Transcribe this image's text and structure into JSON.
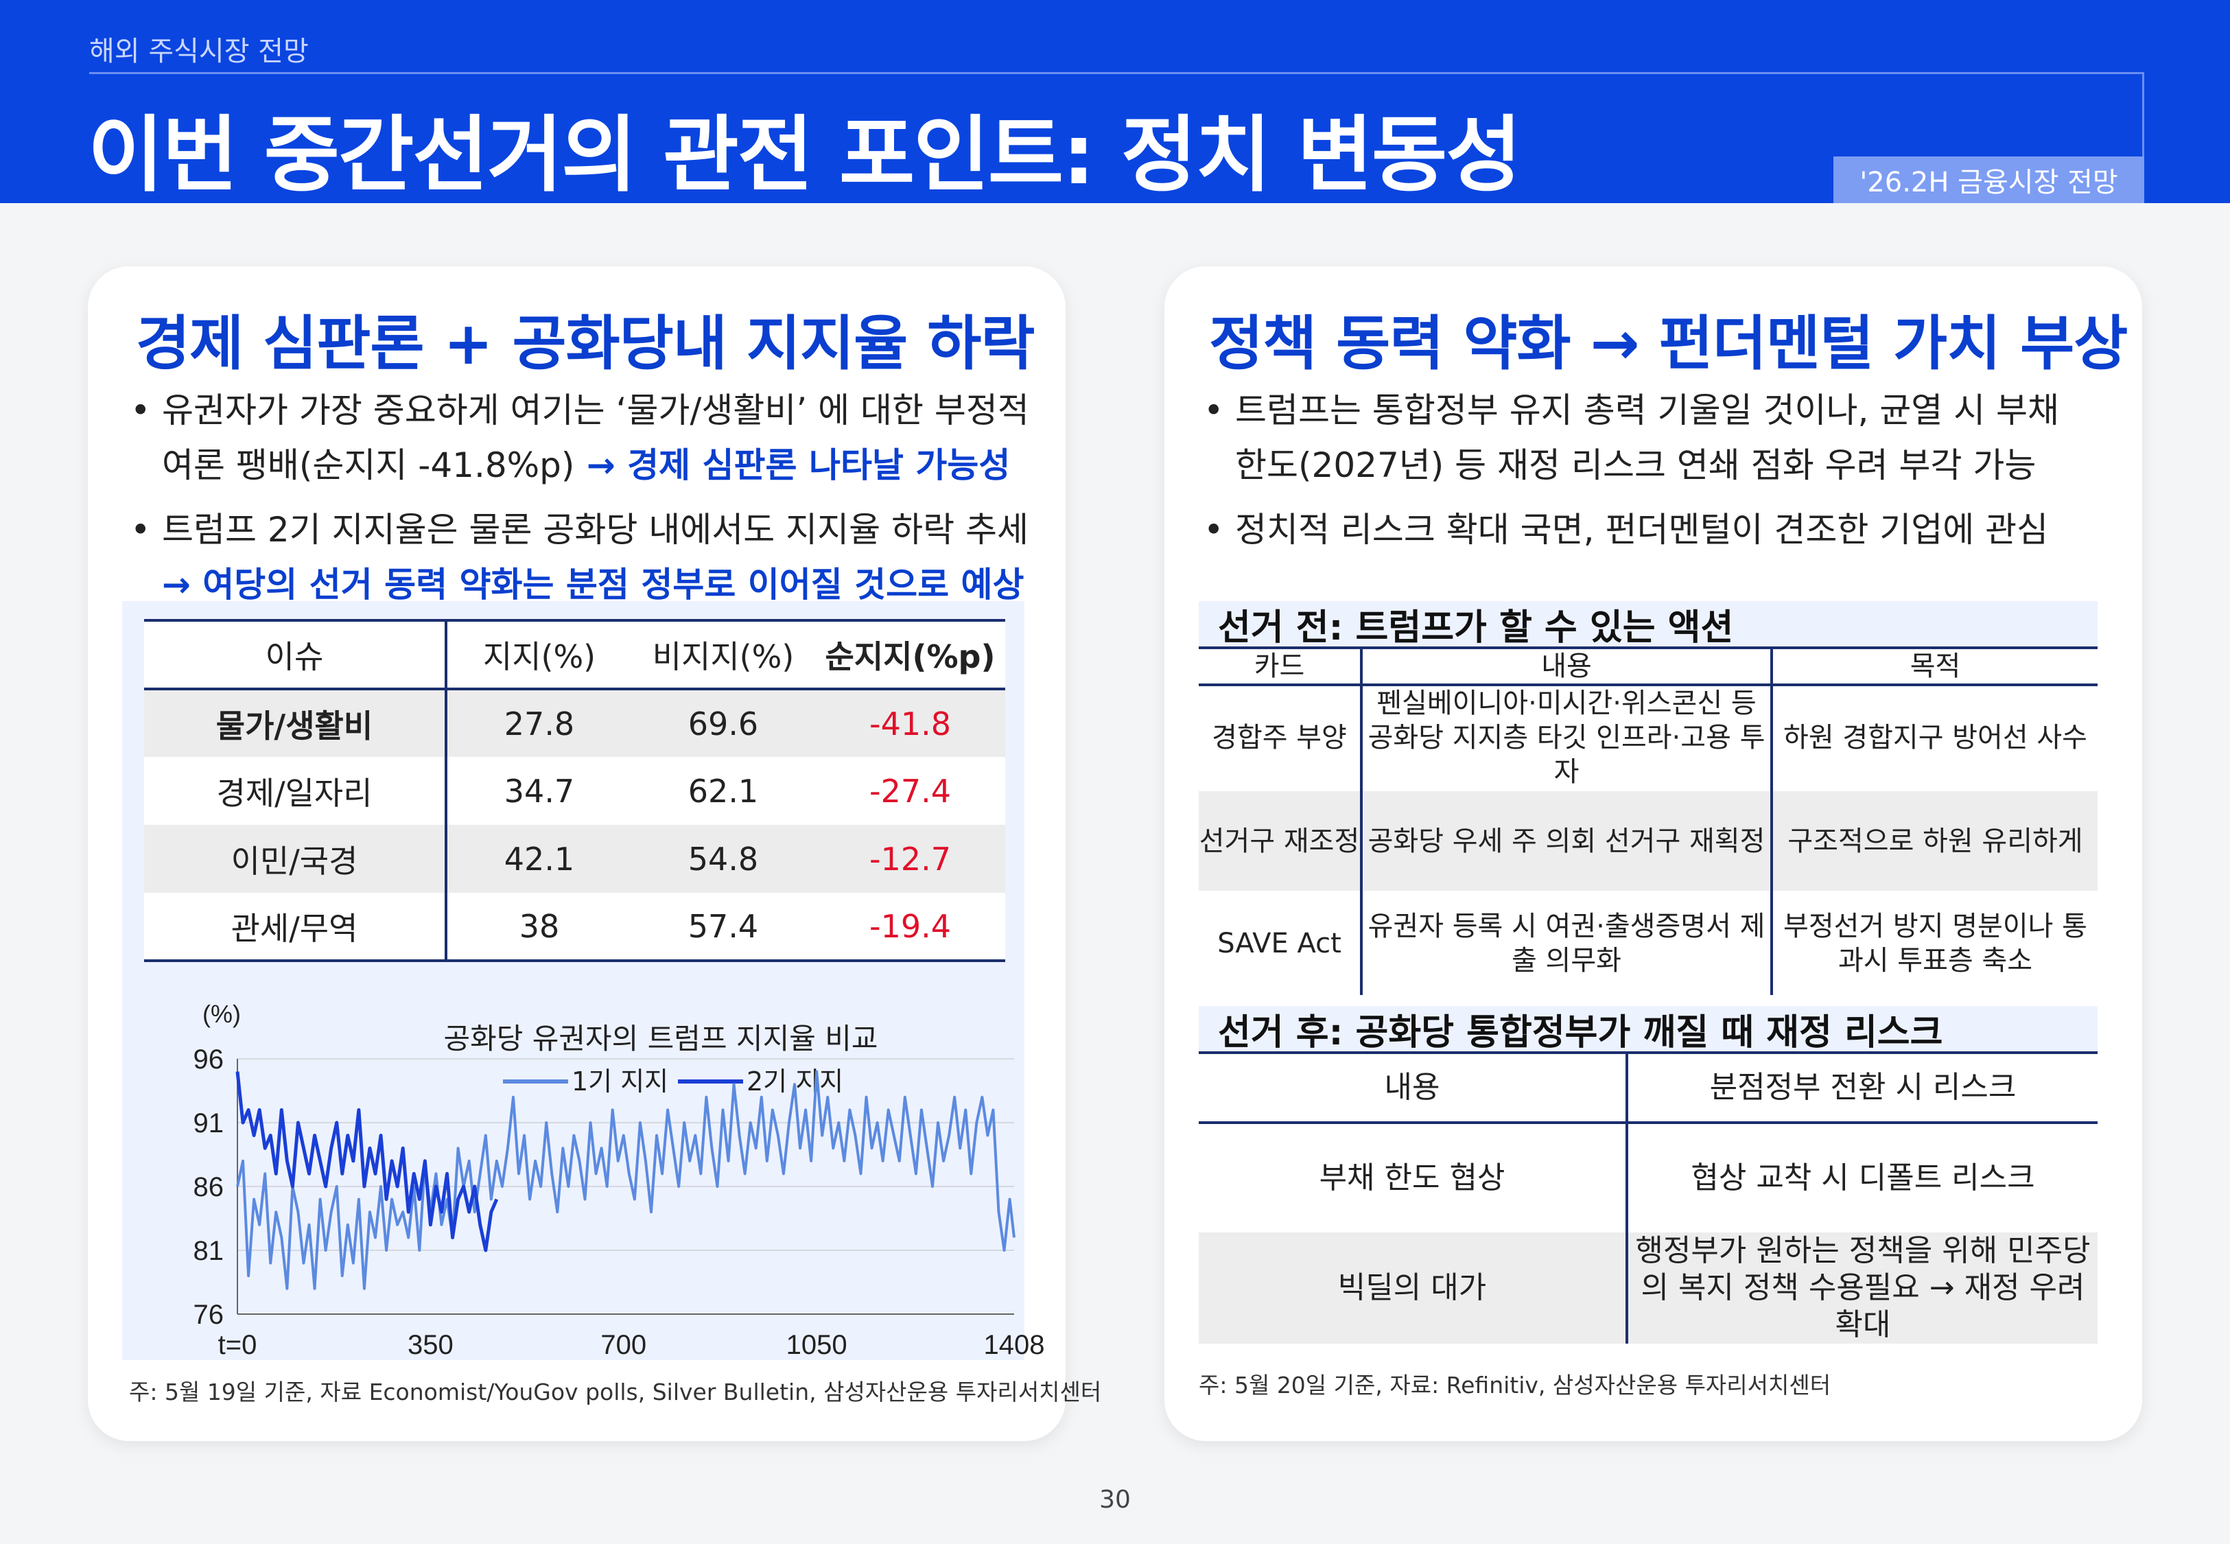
{
  "header": {
    "section": "해외 주식시장 전망",
    "title": "이번 중간선거의 관전 포인트: 정치 변동성",
    "tag": "'26.2H 금융시장 전망"
  },
  "left": {
    "heading": "경제 심판론 + 공화당내 지지율 하락",
    "bullet1_line1": "유권자가 가장 중요하게 여기는 ‘물가/생활비’ 에 대한 부정적",
    "bullet1_line2_plain": "여론 팽배(순지지 -41.8%p)",
    "bullet1_line2_highlight": " → 경제 심판론 나타날 가능성",
    "bullet2_line1": "트럼프 2기 지지율은 물론 공화당 내에서도 지지율 하락 추세",
    "bullet2_line2_highlight": "→ 여당의 선거 동력 약화는 분점 정부로 이어질 것으로 예상",
    "table": {
      "headers": [
        "이슈",
        "지지(%)",
        "비지지(%)",
        "순지지(%p)"
      ],
      "rows": [
        [
          "물가/생활비",
          "27.8",
          "69.6",
          "-41.8"
        ],
        [
          "경제/일자리",
          "34.7",
          "62.1",
          "-27.4"
        ],
        [
          "이민/국경",
          "42.1",
          "54.8",
          "-12.7"
        ],
        [
          "관세/무역",
          "38",
          "57.4",
          "-19.4"
        ]
      ]
    },
    "footnote": "주: 5월 19일 기준, 자료  Economist/YouGov polls, Silver Bulletin, 삼성자산운용 투자리서치센터"
  },
  "chart_data": {
    "type": "line",
    "title": "공화당 유권자의 트럼프 지지율 비교",
    "ylabel": "(%)",
    "xlabel": "",
    "ylim": [
      76,
      96
    ],
    "xlim": [
      0,
      1408
    ],
    "yticks": [
      "96",
      "91",
      "86",
      "81",
      "76"
    ],
    "xticks": [
      "t=0",
      "350",
      "700",
      "1050",
      "1408"
    ],
    "legend_position": "top",
    "series": [
      {
        "name": "1기 지지",
        "color": "#5b8ae0",
        "x": [
          0,
          10,
          20,
          30,
          40,
          50,
          60,
          70,
          80,
          90,
          100,
          110,
          120,
          130,
          140,
          150,
          160,
          170,
          180,
          190,
          200,
          210,
          220,
          230,
          240,
          250,
          260,
          270,
          280,
          290,
          300,
          310,
          320,
          330,
          340,
          350,
          360,
          370,
          380,
          390,
          400,
          410,
          420,
          430,
          440,
          450,
          460,
          470,
          480,
          490,
          500,
          510,
          520,
          530,
          540,
          550,
          560,
          570,
          580,
          590,
          600,
          610,
          620,
          630,
          640,
          650,
          660,
          670,
          680,
          690,
          700,
          710,
          720,
          730,
          740,
          750,
          760,
          770,
          780,
          790,
          800,
          810,
          820,
          830,
          840,
          850,
          860,
          870,
          880,
          890,
          900,
          910,
          920,
          930,
          940,
          950,
          960,
          970,
          980,
          990,
          1000,
          1010,
          1020,
          1030,
          1040,
          1050,
          1060,
          1070,
          1080,
          1090,
          1100,
          1110,
          1120,
          1130,
          1140,
          1150,
          1160,
          1170,
          1180,
          1190,
          1200,
          1210,
          1220,
          1230,
          1240,
          1250,
          1260,
          1270,
          1280,
          1290,
          1300,
          1310,
          1320,
          1330,
          1340,
          1350,
          1360,
          1370,
          1380,
          1390,
          1400,
          1408
        ],
        "y": [
          86,
          88,
          79,
          85,
          83,
          87,
          80,
          84,
          82,
          78,
          86,
          84,
          80,
          83,
          78,
          85,
          81,
          84,
          86,
          79,
          83,
          80,
          85,
          78,
          84,
          82,
          86,
          81,
          85,
          83,
          84,
          82,
          86,
          81,
          88,
          84,
          87,
          83,
          85,
          82,
          89,
          86,
          88,
          84,
          87,
          90,
          85,
          88,
          86,
          89,
          93,
          87,
          90,
          85,
          88,
          86,
          91,
          87,
          84,
          89,
          86,
          90,
          88,
          85,
          91,
          87,
          89,
          86,
          92,
          88,
          90,
          87,
          85,
          91,
          88,
          84,
          90,
          87,
          92,
          89,
          86,
          91,
          88,
          90,
          87,
          93,
          89,
          86,
          92,
          88,
          94,
          90,
          87,
          91,
          89,
          93,
          88,
          92,
          90,
          87,
          91,
          94,
          89,
          92,
          88,
          95,
          90,
          93,
          89,
          91,
          88,
          92,
          90,
          87,
          93,
          89,
          91,
          88,
          92,
          90,
          88,
          93,
          90,
          87,
          92,
          89,
          86,
          91,
          88,
          90,
          93,
          89,
          92,
          87,
          91,
          93,
          90,
          92,
          84,
          81,
          85,
          82
        ]
      },
      {
        "name": "2기 지지",
        "color": "#1a3fd6",
        "x": [
          0,
          10,
          20,
          30,
          40,
          50,
          60,
          70,
          80,
          90,
          100,
          110,
          120,
          130,
          140,
          150,
          160,
          170,
          180,
          190,
          200,
          210,
          220,
          230,
          240,
          250,
          260,
          270,
          280,
          290,
          300,
          310,
          320,
          330,
          340,
          350,
          360,
          370,
          380,
          390,
          400,
          410,
          420,
          430,
          440,
          450,
          460,
          470
        ],
        "y": [
          95,
          91,
          92,
          90,
          92,
          89,
          90,
          87,
          92,
          88,
          86,
          91,
          89,
          87,
          90,
          88,
          86,
          89,
          91,
          87,
          90,
          88,
          92,
          86,
          89,
          87,
          90,
          85,
          88,
          86,
          89,
          84,
          87,
          85,
          88,
          83,
          86,
          84,
          87,
          82,
          85,
          86,
          84,
          86,
          83,
          81,
          84,
          85
        ]
      }
    ]
  },
  "right": {
    "heading": "정책 동력 약화 → 펀더멘털 가치 부상",
    "bullet1_line1": "트럼프는 통합정부 유지 총력 기울일 것이나, 균열 시 부채",
    "bullet1_line2": "한도(2027년) 등 재정 리스크 연쇄 점화 우려 부각 가능",
    "bullet2_line1": "정치적 리스크 확대 국면, 펀더멘털이 견조한 기업에 관심",
    "table1": {
      "title": "선거 전: 트럼프가 할 수 있는 액션",
      "headers": [
        "카드",
        "내용",
        "목적"
      ],
      "rows": [
        [
          "경합주 부양",
          "펜실베이니아·미시간·위스콘신 등 공화당 지지층 타깃 인프라·고용 투자",
          "하원 경합지구 방어선 사수"
        ],
        [
          "선거구 재조정",
          "공화당 우세 주 의회 선거구 재획정",
          "구조적으로 하원 유리하게"
        ],
        [
          "SAVE Act",
          "유권자 등록 시 여권·출생증명서 제출 의무화",
          "부정선거 방지 명분이나 통과시 투표층 축소"
        ]
      ]
    },
    "table2": {
      "title": "선거 후: 공화당 통합정부가 깨질 때 재정 리스크",
      "headers": [
        "내용",
        "분점정부 전환 시 리스크"
      ],
      "rows": [
        [
          "부채 한도 협상",
          "협상 교착 시 디폴트 리스크"
        ],
        [
          "빅딜의 대가",
          "행정부가 원하는 정책을 위해 민주당의 복지 정책 수용필요 → 재정 우려확대"
        ]
      ]
    },
    "footnote": "주: 5월 20일 기준, 자료: Refinitiv, 삼성자산운용 투자리서치센터"
  },
  "page_number": "30"
}
